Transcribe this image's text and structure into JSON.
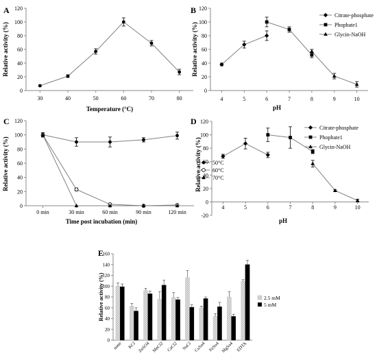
{
  "chart_data": [
    {
      "panel": "A",
      "type": "line",
      "xlabel": "Temperature (°C)",
      "ylabel": "Relative activity (%)",
      "categories": [
        "30",
        "40",
        "50",
        "60",
        "70",
        "80"
      ],
      "ylim": [
        0,
        120
      ],
      "yticks": [
        "0",
        "20",
        "40",
        "60",
        "80",
        "100",
        "120"
      ],
      "series": [
        {
          "values": [
            7,
            21,
            57,
            100,
            69,
            27
          ],
          "errors": [
            1,
            2,
            4,
            6,
            4,
            4
          ],
          "marker": "circle"
        }
      ]
    },
    {
      "panel": "B",
      "type": "line",
      "xlabel": "pH",
      "ylabel": "Relative activity (%)",
      "categories": [
        "4",
        "5",
        "6",
        "7",
        "8",
        "9",
        "10"
      ],
      "ylim": [
        0,
        120
      ],
      "yticks": [
        "0",
        "20",
        "40",
        "60",
        "80",
        "100",
        "120"
      ],
      "legend": "top-right",
      "series": [
        {
          "name": "Citrate-phosphate",
          "x": [
            "4",
            "5",
            "6"
          ],
          "values": [
            38,
            67,
            80
          ],
          "errors": [
            2,
            5,
            7
          ],
          "marker": "diamond"
        },
        {
          "name": "Phophate1",
          "x": [
            "6",
            "7",
            "8"
          ],
          "values": [
            100,
            89,
            52
          ],
          "errors": [
            7,
            4,
            4
          ],
          "marker": "square"
        },
        {
          "name": "Glycin-NaOH",
          "x": [
            "8",
            "9",
            "10"
          ],
          "values": [
            57,
            21,
            9
          ],
          "errors": [
            3,
            4,
            4
          ],
          "marker": "triangle"
        }
      ]
    },
    {
      "panel": "C",
      "type": "line",
      "xlabel": "Time post incubation (min)",
      "ylabel": "Relative activity (%)",
      "categories": [
        "0 min",
        "30 min",
        "60 min",
        "90 min",
        "120 min"
      ],
      "ylim": [
        0,
        120
      ],
      "yticks": [
        "0",
        "20",
        "40",
        "60",
        "80",
        "100",
        "120"
      ],
      "legend": "right",
      "series": [
        {
          "name": "50°C",
          "values": [
            100,
            90,
            90,
            93,
            99
          ],
          "errors": [
            3,
            6,
            7,
            3,
            5
          ],
          "marker": "circle"
        },
        {
          "name": "60°C",
          "values": [
            100,
            23,
            2,
            0,
            1
          ],
          "errors": [
            3,
            2,
            1,
            1,
            1
          ],
          "marker": "circle-open"
        },
        {
          "name": "70°C",
          "values": [
            100,
            0,
            0,
            0,
            0
          ],
          "errors": [
            3,
            0,
            0,
            0,
            0
          ],
          "marker": "triangle"
        }
      ]
    },
    {
      "panel": "D",
      "type": "line",
      "xlabel": "pH",
      "ylabel": "Relative activity (%)",
      "categories": [
        "4",
        "5",
        "6",
        "7",
        "8",
        "9",
        "10"
      ],
      "ylim": [
        -20,
        120
      ],
      "yticks": [
        "-20",
        "0",
        "20",
        "40",
        "60",
        "80",
        "100",
        "120"
      ],
      "legend": "top-right",
      "series": [
        {
          "name": "Citrate-phosphate",
          "x": [
            "4",
            "5",
            "6"
          ],
          "values": [
            68,
            87,
            70
          ],
          "errors": [
            3,
            8,
            4
          ],
          "marker": "diamond"
        },
        {
          "name": "Phophate1",
          "x": [
            "6",
            "7",
            "8"
          ],
          "values": [
            100,
            96,
            75
          ],
          "errors": [
            10,
            16,
            3
          ],
          "marker": "square"
        },
        {
          "name": "Glycin-NaOH",
          "x": [
            "8",
            "9",
            "10"
          ],
          "values": [
            57,
            17,
            2
          ],
          "errors": [
            5,
            1,
            2
          ],
          "marker": "triangle"
        }
      ]
    },
    {
      "panel": "E",
      "type": "bar",
      "xlabel": "",
      "ylabel": "Relative activity (%)",
      "categories": [
        "none",
        "KCl",
        "ZnSO4",
        "MnCl2",
        "CaCl2",
        "NaCl",
        "CuSo4",
        "FeSo4",
        "MgSo4",
        "EDTA"
      ],
      "ylim": [
        0,
        160
      ],
      "yticks": [
        "0",
        "20",
        "40",
        "60",
        "80",
        "100",
        "120",
        "140",
        "160"
      ],
      "legend": "right",
      "series": [
        {
          "name": "2.5 mM",
          "values": [
            100,
            63,
            92,
            76,
            79,
            116,
            60,
            44,
            80,
            109
          ],
          "errors": [
            6,
            5,
            4,
            14,
            9,
            13,
            3,
            5,
            10,
            3
          ],
          "color": "#d4d4d4",
          "pattern": "checkered"
        },
        {
          "name": "5 mM",
          "values": [
            99,
            54,
            86,
            102,
            75,
            61,
            77,
            62,
            44,
            140
          ],
          "errors": [
            5,
            6,
            5,
            9,
            4,
            5,
            3,
            8,
            4,
            8
          ],
          "color": "#000000"
        }
      ]
    }
  ],
  "panel_labels": [
    "A",
    "B",
    "C",
    "D",
    "E"
  ],
  "colors": {
    "line": "#808080",
    "marker": "#000000",
    "axis": "#888888",
    "bar_5mM": "#000000",
    "bar_2_5mM": "#d4d4d4"
  }
}
